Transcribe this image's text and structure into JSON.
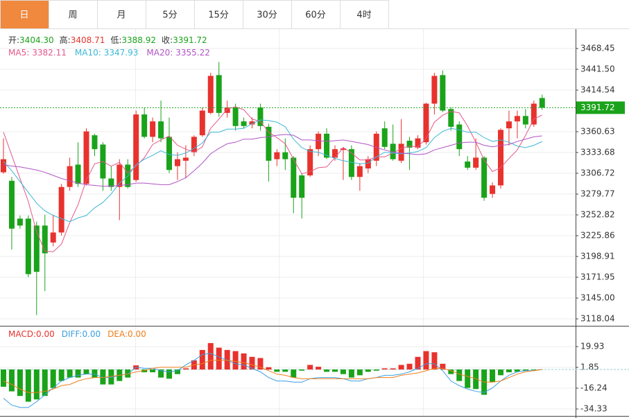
{
  "tabs": [
    "日",
    "周",
    "月",
    "5分",
    "15分",
    "30分",
    "60分",
    "4时"
  ],
  "active_tab": 0,
  "chart_data": [
    {
      "type": "candlestick",
      "up_color": "#e8322d",
      "down_color": "#1aa31a",
      "info": [
        {
          "name": "开:",
          "text": "3404.30",
          "color": "#1aa31a"
        },
        {
          "name": "高:",
          "text": "3408.71",
          "color": "#e8322d"
        },
        {
          "name": "低:",
          "text": "3388.92",
          "color": "#1aa31a"
        },
        {
          "name": "收:",
          "text": "3391.72",
          "color": "#1aa31a"
        }
      ],
      "open": [
        3308,
        3297,
        3248,
        3248,
        3239,
        3239,
        3217,
        3230,
        3289,
        3318,
        3293,
        3356,
        3344,
        3300,
        3289,
        3318,
        3298,
        3383,
        3354,
        3374,
        3354,
        3316,
        3323,
        3334,
        3356,
        3385,
        3434,
        3385,
        3392,
        3374,
        3370,
        3392,
        3367,
        3325,
        3334,
        3327,
        3304,
        3304,
        3338,
        3358,
        3327,
        3337,
        3338,
        3302,
        3313,
        3323,
        3365,
        3345,
        3323,
        3349,
        3340,
        3347,
        3397,
        3434,
        3390,
        3370,
        3322,
        3314,
        3327,
        3280,
        3291,
        3365,
        3374,
        3381,
        3370,
        3404.3
      ],
      "high": [
        3352,
        3302,
        3252,
        3252,
        3244,
        3253,
        3253,
        3293,
        3327,
        3347,
        3365,
        3358,
        3347,
        3316,
        3325,
        3325,
        3388,
        3392,
        3379,
        3401,
        3379,
        3334,
        3343,
        3356,
        3392,
        3437,
        3451,
        3401,
        3397,
        3379,
        3379,
        3397,
        3371,
        3338,
        3352,
        3329,
        3307,
        3343,
        3361,
        3365,
        3343,
        3341,
        3343,
        3320,
        3329,
        3361,
        3374,
        3370,
        3377,
        3354,
        3356,
        3398,
        3437,
        3440,
        3392,
        3374,
        3329,
        3352,
        3329,
        3295,
        3365,
        3388,
        3388,
        3390,
        3401,
        3408.71
      ],
      "low": [
        3306,
        3208,
        3235,
        3172,
        3123,
        3154,
        3212,
        3226,
        3284,
        3289,
        3291,
        3329,
        3284,
        3284,
        3246,
        3287,
        3296,
        3352,
        3347,
        3347,
        3307,
        3298,
        3300,
        3329,
        3354,
        3383,
        3380,
        3379,
        3362,
        3365,
        3365,
        3362,
        3296,
        3316,
        3311,
        3255,
        3248,
        3302,
        3329,
        3325,
        3323,
        3298,
        3298,
        3284,
        3307,
        3316,
        3338,
        3323,
        3320,
        3311,
        3338,
        3344,
        3383,
        3386,
        3362,
        3329,
        3311,
        3311,
        3271,
        3275,
        3287,
        3343,
        3352,
        3365,
        3367,
        3388.92
      ],
      "close": [
        3325,
        3235,
        3239,
        3176,
        3179,
        3203,
        3230,
        3289,
        3316,
        3293,
        3361,
        3338,
        3300,
        3289,
        3318,
        3289,
        3383,
        3354,
        3374,
        3352,
        3311,
        3325,
        3327,
        3354,
        3388,
        3433,
        3385,
        3392,
        3368,
        3368,
        3374,
        3368,
        3323,
        3334,
        3325,
        3275,
        3275,
        3338,
        3358,
        3327,
        3338,
        3339,
        3302,
        3316,
        3325,
        3358,
        3341,
        3325,
        3345,
        3340,
        3352,
        3397,
        3433,
        3388,
        3367,
        3338,
        3314,
        3327,
        3275,
        3291,
        3363,
        3374,
        3381,
        3370,
        3397,
        3391.72
      ],
      "series": [
        {
          "name": "MA5:",
          "value_label": "3382.11",
          "color": "#e5578a",
          "values": [
            3360,
            3330,
            3300,
            3270,
            3231,
            3206,
            3205,
            3215,
            3243,
            3266,
            3298,
            3319,
            3322,
            3316,
            3321,
            3307,
            3316,
            3327,
            3344,
            3350,
            3355,
            3343,
            3338,
            3334,
            3341,
            3365,
            3377,
            3390,
            3393,
            3389,
            3377,
            3374,
            3360,
            3353,
            3345,
            3325,
            3306,
            3309,
            3314,
            3315,
            3327,
            3340,
            3333,
            3324,
            3324,
            3328,
            3328,
            3333,
            3339,
            3342,
            3341,
            3352,
            3373,
            3382,
            3387,
            3385,
            3368,
            3347,
            3324,
            3309,
            3314,
            3326,
            3337,
            3356,
            3377,
            3382.11
          ]
        },
        {
          "name": "MA10:",
          "value_label": "3347.93",
          "color": "#3bb8d6",
          "values": [
            3322,
            3310,
            3296,
            3282,
            3268,
            3258,
            3252,
            3248,
            3244,
            3249,
            3252,
            3262,
            3269,
            3280,
            3294,
            3303,
            3318,
            3325,
            3330,
            3336,
            3331,
            3330,
            3333,
            3339,
            3346,
            3360,
            3360,
            3364,
            3364,
            3365,
            3371,
            3376,
            3375,
            3373,
            3367,
            3351,
            3340,
            3335,
            3334,
            3330,
            3326,
            3323,
            3321,
            3319,
            3320,
            3328,
            3334,
            3333,
            3332,
            3333,
            3335,
            3340,
            3353,
            3361,
            3365,
            3363,
            3360,
            3360,
            3353,
            3348,
            3350,
            3347,
            3342,
            3340,
            3343,
            3347.93
          ]
        },
        {
          "name": "MA20:",
          "value_label": "3355.22",
          "color": "#b053c6",
          "values": [
            3318,
            3316,
            3315,
            3313,
            3311,
            3308,
            3304,
            3300,
            3297,
            3294,
            3292,
            3291,
            3290,
            3290,
            3291,
            3292,
            3294,
            3294,
            3293,
            3292,
            3292,
            3296,
            3301,
            3310,
            3320,
            3332,
            3339,
            3345,
            3347,
            3351,
            3351,
            3353,
            3354,
            3356,
            3357,
            3356,
            3350,
            3350,
            3349,
            3348,
            3349,
            3350,
            3348,
            3346,
            3344,
            3340,
            3337,
            3334,
            3333,
            3332,
            3331,
            3332,
            3337,
            3340,
            3343,
            3346,
            3347,
            3347,
            3343,
            3341,
            3343,
            3344,
            3348,
            3351,
            3354,
            3355.22
          ]
        }
      ],
      "ylim": [
        3110.85,
        3493.6
      ],
      "yticks": [
        3468.45,
        {
          "value": 3441.5,
          "label": "3441.50"
        },
        3414.54,
        3360.63,
        3333.68,
        3306.72,
        3279.77,
        3252.82,
        3225.86,
        3198.91,
        3171.95,
        {
          "value": 3145,
          "label": "3145.00"
        },
        3118.04
      ],
      "grid": true
    },
    {
      "type": "macd",
      "up_color": "#e8322d",
      "down_color": "#1aa31a",
      "series": [
        {
          "name": "MACD:",
          "value_label": "0.00",
          "type": "bar",
          "color": "#e8322d",
          "values": [
            -15,
            -19,
            -23,
            -28,
            -26,
            -23,
            -16,
            -10,
            -7,
            -7,
            -4,
            -7,
            -13,
            -13,
            -10,
            -7,
            3.6,
            -2.4,
            -2.4,
            -7,
            -8,
            -4,
            1,
            8,
            17,
            23,
            19,
            17,
            16,
            14,
            11,
            10,
            2,
            -2,
            -2,
            -7,
            -1,
            4,
            2.4,
            -2,
            -2,
            -4,
            -7,
            -5,
            -2,
            -1,
            1,
            1,
            4,
            5,
            11,
            16,
            15,
            5,
            -4,
            -10,
            -16,
            -17,
            -22,
            -11,
            -5,
            -2.4,
            -2,
            -1,
            -0.5,
            0
          ]
        },
        {
          "name": "DIFF:",
          "value_label": "0.00",
          "type": "line",
          "color": "#3a9ee0",
          "values": [
            -25,
            -31,
            -33,
            -33,
            -28,
            -22,
            -16,
            -10,
            -7,
            -5,
            -4,
            -4,
            -7,
            -7,
            -5,
            -4,
            2,
            1,
            1,
            -1,
            -2,
            -1,
            4,
            8,
            13,
            14,
            11,
            8,
            5,
            4,
            1,
            -2,
            -7,
            -10,
            -10,
            -11,
            -11,
            -8,
            -7,
            -7,
            -7,
            -8,
            -10,
            -10,
            -8,
            -7,
            -5,
            -5,
            -4,
            -2,
            1,
            5,
            5,
            -1,
            -10,
            -14,
            -17,
            -19,
            -20,
            -16,
            -10,
            -5,
            -2,
            -1,
            -1,
            0
          ]
        },
        {
          "name": "DEA:",
          "value_label": "0.00",
          "type": "line",
          "color": "#f07d1a",
          "values": [
            -10,
            -13,
            -17,
            -20,
            -20,
            -19,
            -17,
            -14,
            -13,
            -10,
            -8,
            -7,
            -7,
            -6,
            -5,
            -4,
            -2,
            -1,
            1,
            2,
            2,
            2,
            2,
            4,
            5,
            8,
            8,
            8,
            7,
            6,
            4,
            2,
            -1,
            -4,
            -5,
            -7,
            -8,
            -8,
            -8,
            -8,
            -8,
            -8,
            -8,
            -8,
            -8,
            -7,
            -7,
            -7,
            -5,
            -4,
            -3,
            -1,
            1,
            1,
            -1,
            -4,
            -6,
            -8,
            -11,
            -11,
            -10,
            -7,
            -4,
            -2,
            -1,
            0
          ]
        }
      ],
      "ylim": [
        -40.36,
        36.8
      ],
      "yticks": [
        19.93,
        1.85,
        -16.24,
        -34.33
      ],
      "grid": true
    }
  ]
}
